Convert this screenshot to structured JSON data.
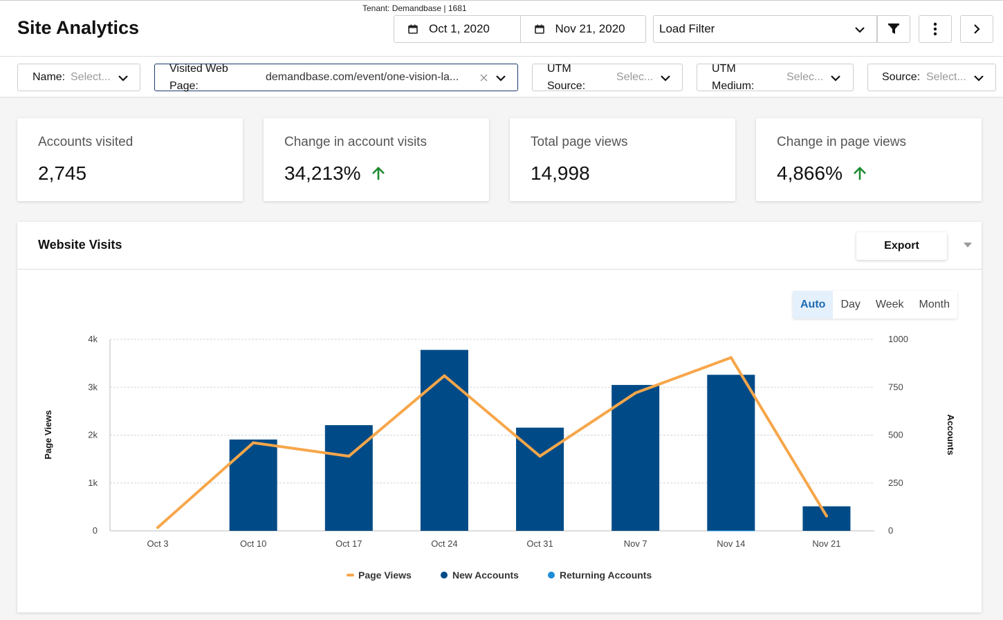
{
  "header": {
    "title": "Site Analytics",
    "tenant": "Tenant: Demandbase | 1681",
    "start_date": "Oct 1, 2020",
    "end_date": "Nov 21, 2020",
    "load_filter": "Load Filter",
    "icons": [
      "calendar-icon",
      "chevron-down-icon",
      "filter-icon",
      "more-vertical-icon",
      "chevron-right-icon"
    ]
  },
  "filters": {
    "name": {
      "label": "Name:",
      "value": "Select..."
    },
    "visited_page": {
      "label_line1": "Visited Web",
      "label_line2": "Page:",
      "value": "demandbase.com/event/one-vision-la..."
    },
    "utm_source": {
      "label_line1": "UTM",
      "label_line2": "Source:",
      "value": "Selec..."
    },
    "utm_medium": {
      "label_line1": "UTM",
      "label_line2": "Medium:",
      "value": "Selec..."
    },
    "source": {
      "label": "Source:",
      "value": "Select..."
    }
  },
  "kpis": [
    {
      "label": "Accounts visited",
      "value": "2,745",
      "trend": "none"
    },
    {
      "label": "Change in account visits",
      "value": "34,213%",
      "trend": "up"
    },
    {
      "label": "Total page views",
      "value": "14,998",
      "trend": "none"
    },
    {
      "label": "Change in page views",
      "value": "4,866%",
      "trend": "up"
    }
  ],
  "panel": {
    "title": "Website Visits",
    "export_label": "Export",
    "granularity": [
      {
        "label": "Auto",
        "active": true
      },
      {
        "label": "Day",
        "active": false
      },
      {
        "label": "Week",
        "active": false
      },
      {
        "label": "Month",
        "active": false
      }
    ]
  },
  "colors": {
    "page_views": "#f7a64a",
    "new_accounts": "#004b87",
    "returning_accounts": "#1f8dd6",
    "up_arrow": "#1a8a2e"
  },
  "chart_data": {
    "type": "bar",
    "categories": [
      "Oct 3",
      "Oct 10",
      "Oct 17",
      "Oct 24",
      "Oct 31",
      "Nov 7",
      "Nov 14",
      "Nov 21"
    ],
    "y_left": {
      "label": "Page Views",
      "ticks": [
        "0",
        "1k",
        "2k",
        "3k",
        "4k"
      ],
      "range": [
        0,
        4000
      ]
    },
    "y_right": {
      "label": "Accounts",
      "ticks": [
        "0",
        "250",
        "500",
        "750",
        "1000"
      ],
      "range": [
        0,
        1000
      ]
    },
    "grid": true,
    "legend_position": "bottom",
    "series": [
      {
        "name": "Page Views",
        "type": "line",
        "axis": "left",
        "values": [
          70,
          1840,
          1560,
          3240,
          1560,
          2880,
          3620,
          310
        ]
      },
      {
        "name": "New Accounts",
        "type": "bar",
        "axis": "right",
        "values": [
          0,
          477,
          552,
          945,
          539,
          762,
          815,
          128
        ]
      },
      {
        "name": "Returning Accounts",
        "type": "bar",
        "axis": "right",
        "values": [
          0,
          0,
          0,
          0,
          0,
          0,
          2,
          0
        ]
      }
    ]
  }
}
